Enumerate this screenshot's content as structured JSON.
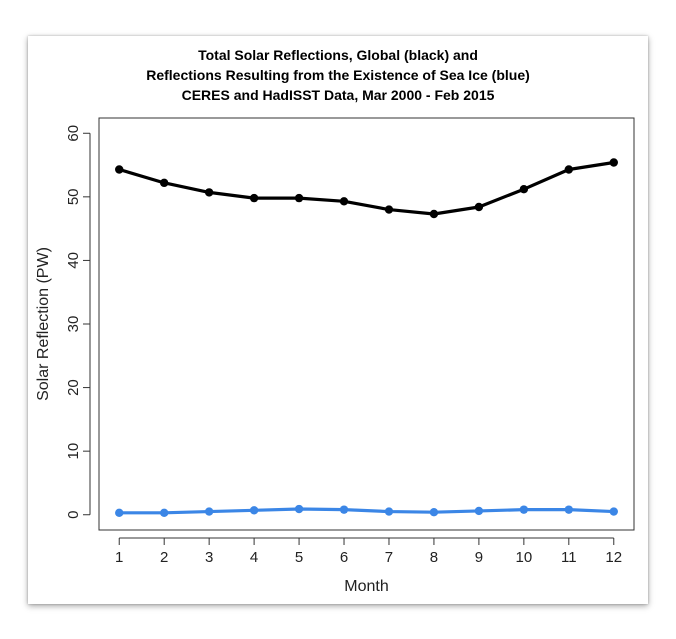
{
  "chart_data": {
    "type": "line",
    "title_lines": [
      "Total Solar Reflections, Global (black) and",
      "Reflections Resulting from the Existence of Sea Ice (blue)",
      "CERES and HadISST Data, Mar 2000 - Feb 2015"
    ],
    "xlabel": "Month",
    "ylabel": "Solar Reflection (PW)",
    "x": [
      1,
      2,
      3,
      4,
      5,
      6,
      7,
      8,
      9,
      10,
      11,
      12
    ],
    "x_tick_labels": [
      "1",
      "2",
      "3",
      "4",
      "5",
      "6",
      "7",
      "8",
      "9",
      "10",
      "11",
      "12"
    ],
    "y_tick_labels": [
      "0",
      "10",
      "20",
      "30",
      "40",
      "50",
      "60"
    ],
    "y_ticks": [
      0,
      10,
      20,
      30,
      40,
      50,
      60
    ],
    "xlim": [
      0.55,
      12.45
    ],
    "ylim": [
      -2.4,
      62.4
    ],
    "series": [
      {
        "name": "Global",
        "color": "#000000",
        "values": [
          54.3,
          52.2,
          50.7,
          49.8,
          49.8,
          49.3,
          48.0,
          47.3,
          48.4,
          51.2,
          54.3,
          55.4
        ]
      },
      {
        "name": "Sea Ice",
        "color": "#3b86e6",
        "values": [
          0.3,
          0.3,
          0.5,
          0.7,
          0.9,
          0.8,
          0.5,
          0.4,
          0.6,
          0.8,
          0.8,
          0.5
        ]
      }
    ]
  }
}
